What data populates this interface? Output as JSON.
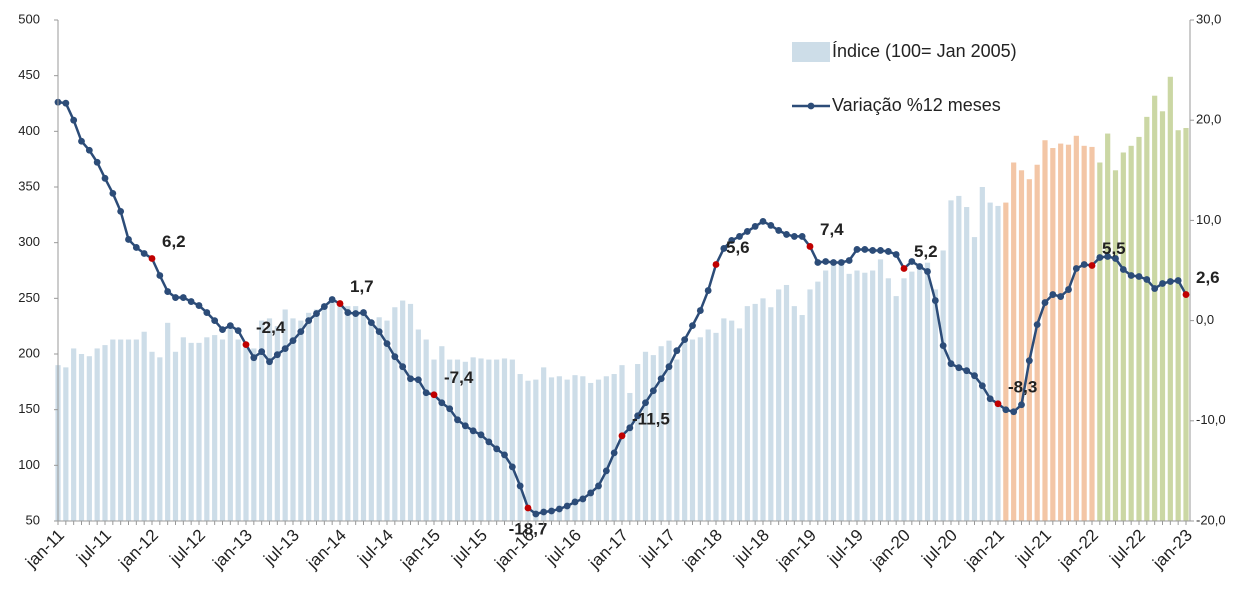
{
  "chart_data": {
    "type": "bar_line",
    "categories": [
      "jan-11",
      null,
      null,
      null,
      null,
      null,
      "jul-11",
      null,
      null,
      null,
      null,
      null,
      "jan-12",
      null,
      null,
      null,
      null,
      null,
      "jul-12",
      null,
      null,
      null,
      null,
      null,
      "jan-13",
      null,
      null,
      null,
      null,
      null,
      "jul-13",
      null,
      null,
      null,
      null,
      null,
      "jan-14",
      null,
      null,
      null,
      null,
      null,
      "jul-14",
      null,
      null,
      null,
      null,
      null,
      "jan-15",
      null,
      null,
      null,
      null,
      null,
      "jul-15",
      null,
      null,
      null,
      null,
      null,
      "jan-16",
      null,
      null,
      null,
      null,
      null,
      "jul-16",
      null,
      null,
      null,
      null,
      null,
      "jan-17",
      null,
      null,
      null,
      null,
      null,
      "jul-17",
      null,
      null,
      null,
      null,
      null,
      "jan-18",
      null,
      null,
      null,
      null,
      null,
      "jul-18",
      null,
      null,
      null,
      null,
      null,
      "jan-19",
      null,
      null,
      null,
      null,
      null,
      "jul-19",
      null,
      null,
      null,
      null,
      null,
      "jan-20",
      null,
      null,
      null,
      null,
      null,
      "jul-20",
      null,
      null,
      null,
      null,
      null,
      "jan-21",
      null,
      null,
      null,
      null,
      null,
      "jul-21",
      null,
      null,
      null,
      null,
      null,
      "jan-22",
      null,
      null,
      null,
      null,
      null,
      "jul-22",
      null,
      null,
      null,
      null,
      null,
      "jan-23"
    ],
    "series": [
      {
        "name": "Índice (100= Jan 2005)",
        "type": "bar",
        "color": "#cddde8",
        "values": [
          190,
          188,
          205,
          200,
          198,
          205,
          208,
          213,
          213,
          213,
          213,
          220,
          202,
          197,
          228,
          202,
          215,
          210,
          210,
          215,
          217,
          213,
          225,
          213,
          210,
          205,
          230,
          232,
          225,
          240,
          232,
          230,
          237,
          240,
          245,
          250,
          245,
          243,
          243,
          235,
          230,
          233,
          230,
          242,
          248,
          245,
          222,
          213,
          195,
          207,
          195,
          195,
          193,
          197,
          196,
          195,
          195,
          196,
          195,
          182,
          176,
          177,
          188,
          179,
          180,
          177,
          181,
          180,
          174,
          177,
          180,
          182,
          190,
          165,
          191,
          202,
          199,
          207,
          212,
          195,
          213,
          213,
          215,
          222,
          219,
          232,
          230,
          223,
          243,
          245,
          250,
          242,
          258,
          262,
          243,
          235,
          258,
          265,
          275,
          280,
          285,
          272,
          275,
          273,
          275,
          285,
          268,
          252,
          268,
          274,
          280,
          282,
          258,
          293,
          338,
          342,
          332,
          305,
          350,
          336,
          333,
          336,
          372,
          365,
          357,
          370,
          392,
          385,
          389,
          388,
          396,
          387,
          386,
          372,
          398,
          365,
          381,
          387,
          395,
          413,
          432,
          418,
          449,
          401,
          403
        ],
        "colors": [
          "#cddde8",
          "#cddde8",
          "#cddde8",
          "#cddde8",
          "#cddde8",
          "#cddde8",
          "#cddde8",
          "#cddde8",
          "#cddde8",
          "#cddde8",
          "#cddde8",
          "#cddde8",
          "#cddde8",
          "#cddde8",
          "#cddde8",
          "#cddde8",
          "#cddde8",
          "#cddde8",
          "#cddde8",
          "#cddde8",
          "#cddde8",
          "#cddde8",
          "#cddde8",
          "#cddde8",
          "#cddde8",
          "#cddde8",
          "#cddde8",
          "#cddde8",
          "#cddde8",
          "#cddde8",
          "#cddde8",
          "#cddde8",
          "#cddde8",
          "#cddde8",
          "#cddde8",
          "#cddde8",
          "#cddde8",
          "#cddde8",
          "#cddde8",
          "#cddde8",
          "#cddde8",
          "#cddde8",
          "#cddde8",
          "#cddde8",
          "#cddde8",
          "#cddde8",
          "#cddde8",
          "#cddde8",
          "#cddde8",
          "#cddde8",
          "#cddde8",
          "#cddde8",
          "#cddde8",
          "#cddde8",
          "#cddde8",
          "#cddde8",
          "#cddde8",
          "#cddde8",
          "#cddde8",
          "#cddde8",
          "#cddde8",
          "#cddde8",
          "#cddde8",
          "#cddde8",
          "#cddde8",
          "#cddde8",
          "#cddde8",
          "#cddde8",
          "#cddde8",
          "#cddde8",
          "#cddde8",
          "#cddde8",
          "#cddde8",
          "#cddde8",
          "#cddde8",
          "#cddde8",
          "#cddde8",
          "#cddde8",
          "#cddde8",
          "#cddde8",
          "#cddde8",
          "#cddde8",
          "#cddde8",
          "#cddde8",
          "#cddde8",
          "#cddde8",
          "#cddde8",
          "#cddde8",
          "#cddde8",
          "#cddde8",
          "#cddde8",
          "#cddde8",
          "#cddde8",
          "#cddde8",
          "#cddde8",
          "#cddde8",
          "#cddde8",
          "#cddde8",
          "#cddde8",
          "#cddde8",
          "#cddde8",
          "#cddde8",
          "#cddde8",
          "#cddde8",
          "#cddde8",
          "#cddde8",
          "#cddde8",
          "#cddde8",
          "#cddde8",
          "#cddde8",
          "#cddde8",
          "#cddde8",
          "#cddde8",
          "#cddde8",
          "#cddde8",
          "#cddde8",
          "#cddde8",
          "#cddde8",
          "#cddde8",
          "#cddde8",
          "#cddde8",
          "#f3c6a6",
          "#f3c6a6",
          "#f3c6a6",
          "#f3c6a6",
          "#f3c6a6",
          "#f3c6a6",
          "#f3c6a6",
          "#f3c6a6",
          "#f3c6a6",
          "#f3c6a6",
          "#f3c6a6",
          "#f3c6a6",
          "#cbd7a4",
          "#cbd7a4",
          "#cbd7a4",
          "#cbd7a4",
          "#cbd7a4",
          "#cbd7a4",
          "#cbd7a4",
          "#cbd7a4",
          "#cbd7a4",
          "#cbd7a4",
          "#cbd7a4",
          "#cbd7a4"
        ]
      },
      {
        "name": "Variação %12 meses",
        "type": "line",
        "axis": "y2",
        "color": "#2c4c78",
        "highlight_color": "#c00000",
        "values": [
          21.8,
          21.7,
          20.0,
          17.9,
          17.0,
          15.8,
          14.2,
          12.7,
          10.9,
          8.1,
          7.3,
          6.7,
          6.2,
          4.5,
          2.9,
          2.3,
          2.3,
          1.9,
          1.5,
          0.8,
          0.0,
          -0.9,
          -0.5,
          -1.0,
          -2.4,
          -3.7,
          -3.1,
          -4.1,
          -3.4,
          -2.8,
          -2.0,
          -1.1,
          0.0,
          0.7,
          1.4,
          2.1,
          1.7,
          0.8,
          0.7,
          0.8,
          -0.2,
          -1.1,
          -2.3,
          -3.6,
          -4.6,
          -5.8,
          -5.9,
          -7.2,
          -7.4,
          -8.2,
          -8.8,
          -9.9,
          -10.5,
          -11.0,
          -11.4,
          -12.1,
          -12.8,
          -13.4,
          -14.6,
          -16.5,
          -18.7,
          -19.3,
          -19.1,
          -19.0,
          -18.8,
          -18.5,
          -18.1,
          -17.8,
          -17.2,
          -16.5,
          -15.0,
          -13.2,
          -11.5,
          -10.7,
          -9.5,
          -8.2,
          -7.0,
          -5.8,
          -4.6,
          -3.0,
          -1.9,
          -0.5,
          1.0,
          3.0,
          5.6,
          7.2,
          8.0,
          8.4,
          8.9,
          9.4,
          9.9,
          9.5,
          9.0,
          8.6,
          8.4,
          8.4,
          7.4,
          5.8,
          5.9,
          5.8,
          5.8,
          6.0,
          7.1,
          7.1,
          7.0,
          7.0,
          6.9,
          6.6,
          5.2,
          5.9,
          5.4,
          4.9,
          2.0,
          -2.5,
          -4.3,
          -4.7,
          -5.0,
          -5.5,
          -6.5,
          -7.8,
          -8.3,
          -8.9,
          -9.1,
          -8.4,
          -4.0,
          -0.4,
          1.8,
          2.6,
          2.4,
          3.1,
          5.2,
          5.6,
          5.5,
          6.3,
          6.4,
          6.2,
          5.1,
          4.5,
          4.4,
          4.1,
          3.2,
          3.7,
          3.9,
          4.0,
          2.6
        ],
        "value_labels": [
          "",
          null,
          null,
          null,
          null,
          null,
          null,
          null,
          null,
          null,
          null,
          null,
          "6,2",
          null,
          null,
          null,
          null,
          null,
          null,
          null,
          null,
          null,
          null,
          null,
          "-2,4",
          null,
          null,
          null,
          null,
          null,
          null,
          null,
          null,
          null,
          null,
          null,
          "1,7",
          null,
          null,
          null,
          null,
          null,
          null,
          null,
          null,
          null,
          null,
          null,
          "-7,4",
          null,
          null,
          null,
          null,
          null,
          null,
          null,
          null,
          null,
          null,
          null,
          "-18,7",
          null,
          null,
          null,
          null,
          null,
          null,
          null,
          null,
          null,
          null,
          null,
          "-11,5",
          null,
          null,
          null,
          null,
          null,
          null,
          null,
          null,
          null,
          null,
          null,
          "5,6",
          null,
          null,
          null,
          null,
          null,
          null,
          null,
          null,
          null,
          null,
          null,
          "7,4",
          null,
          null,
          null,
          null,
          null,
          null,
          null,
          null,
          null,
          null,
          null,
          "5,2",
          null,
          null,
          null,
          null,
          null,
          null,
          null,
          null,
          null,
          null,
          null,
          "-8,3",
          null,
          null,
          null,
          null,
          null,
          null,
          null,
          null,
          null,
          null,
          null,
          "5,5",
          null,
          null,
          null,
          null,
          null,
          null,
          null,
          null,
          null,
          null,
          null,
          "2,6"
        ]
      }
    ],
    "ylim": [
      50,
      500
    ],
    "yticks": [
      50,
      100,
      150,
      200,
      250,
      300,
      350,
      400,
      450,
      500
    ],
    "y2lim": [
      -20,
      30
    ],
    "y2ticks": [
      {
        "value": -20,
        "label": "-20,0"
      },
      {
        "value": -10,
        "label": "-10,0"
      },
      {
        "value": 0,
        "label": "0,0"
      },
      {
        "value": 10,
        "label": "10,0"
      },
      {
        "value": 20,
        "label": "20,0"
      },
      {
        "value": 30,
        "label": "30,0"
      }
    ],
    "grid": false,
    "legend": "upper right"
  }
}
